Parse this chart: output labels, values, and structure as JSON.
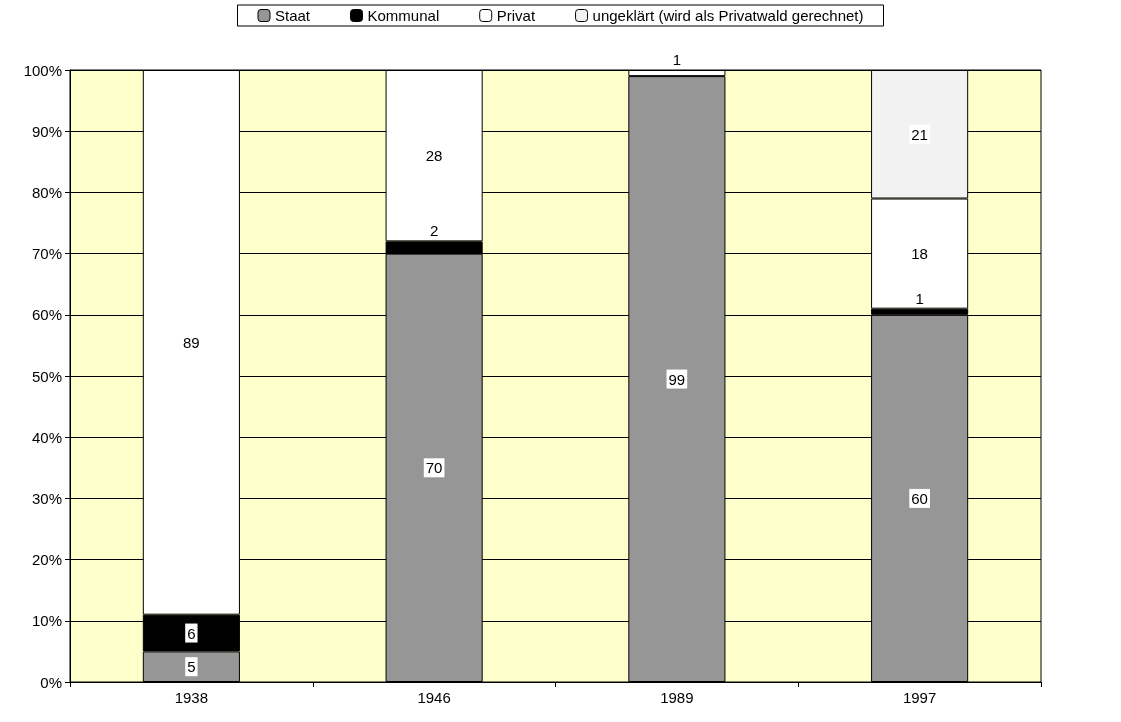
{
  "chart_data": {
    "type": "bar",
    "stacked": true,
    "categories": [
      "1938",
      "1946",
      "1989",
      "1997"
    ],
    "series": [
      {
        "name": "Staat",
        "color": "#969696",
        "values": [
          5,
          70,
          99,
          60
        ]
      },
      {
        "name": "Kommunal",
        "color": "#000000",
        "values": [
          6,
          2,
          null,
          1
        ]
      },
      {
        "name": "Privat",
        "color": "#ffffff",
        "values": [
          89,
          28,
          1,
          18
        ]
      },
      {
        "name": "ungeklärt (wird als Privatwald gerechnet)",
        "color": "#f2f2f2",
        "values": [
          null,
          null,
          null,
          21
        ]
      }
    ],
    "ylim": [
      0,
      100
    ],
    "yticks": [
      {
        "value": 0,
        "label": "0%"
      },
      {
        "value": 10,
        "label": "10%"
      },
      {
        "value": 20,
        "label": "20%"
      },
      {
        "value": 30,
        "label": "30%"
      },
      {
        "value": 40,
        "label": "40%"
      },
      {
        "value": 50,
        "label": "50%"
      },
      {
        "value": 60,
        "label": "60%"
      },
      {
        "value": 70,
        "label": "70%"
      },
      {
        "value": 80,
        "label": "80%"
      },
      {
        "value": 90,
        "label": "90%"
      },
      {
        "value": 100,
        "label": "100%"
      }
    ],
    "grid": "y",
    "legend": "top",
    "data_labels": true
  }
}
